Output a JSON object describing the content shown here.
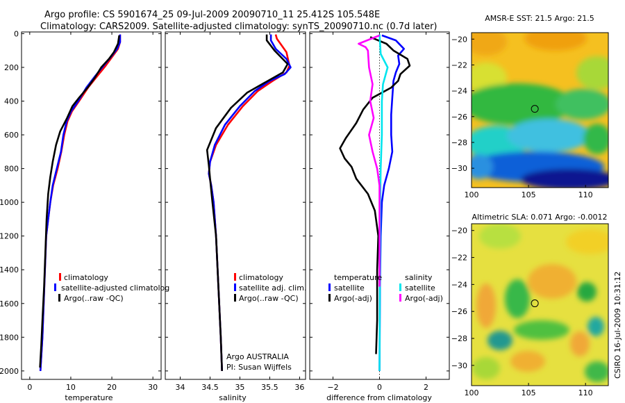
{
  "figure": {
    "title_line1": "Argo profile: CS 5901674_25 09-Jul-2009 20090710_11 25.412S 105.548E",
    "title_line2": "Climatology: CARS2009. Satellite-adjusted climatology: synTS_20090710.nc (0.7d later)",
    "side_note": "CSIRO 16-Jul-2009 10:31:12",
    "colors": {
      "red": "#ff0000",
      "blue": "#0000ff",
      "black": "#000000",
      "cyan": "#00e5ee",
      "magenta": "#ff00ff"
    }
  },
  "chart_data": [
    {
      "id": "temperature",
      "type": "line",
      "xlabel": "temperature",
      "xlim": [
        -2,
        32
      ],
      "ylim": [
        2050,
        -10
      ],
      "xticks": [
        0,
        10,
        20,
        30
      ],
      "yticks": [
        0,
        200,
        400,
        600,
        800,
        1000,
        1200,
        1400,
        1600,
        1800,
        2000
      ],
      "legend": {
        "placement": "lower-right",
        "entries": [
          "climatology",
          "satellite-adjusted climatolog",
          "Argo(..raw -QC)"
        ]
      },
      "series": [
        {
          "name": "climatology",
          "color": "red",
          "points": [
            [
              22,
              5
            ],
            [
              22,
              50
            ],
            [
              21.5,
              90
            ],
            [
              20,
              140
            ],
            [
              18.5,
              190
            ],
            [
              16.5,
              250
            ],
            [
              14.2,
              320
            ],
            [
              12,
              400
            ],
            [
              10.3,
              460
            ],
            [
              9.2,
              520
            ],
            [
              8.4,
              600
            ],
            [
              7.7,
              700
            ],
            [
              6.8,
              800
            ],
            [
              5.7,
              900
            ],
            [
              5,
              1000
            ],
            [
              4.5,
              1100
            ],
            [
              4,
              1200
            ],
            [
              3.7,
              1400
            ],
            [
              3.4,
              1600
            ],
            [
              3.1,
              1800
            ],
            [
              2.6,
              2000
            ]
          ]
        },
        {
          "name": "satellite-adjusted climatology",
          "color": "blue",
          "points": [
            [
              22,
              5
            ],
            [
              22,
              50
            ],
            [
              21.3,
              90
            ],
            [
              19.7,
              140
            ],
            [
              18,
              190
            ],
            [
              16,
              250
            ],
            [
              13.8,
              320
            ],
            [
              11.8,
              400
            ],
            [
              10.1,
              460
            ],
            [
              9,
              520
            ],
            [
              8.2,
              600
            ],
            [
              7.6,
              700
            ],
            [
              6.6,
              800
            ],
            [
              5.6,
              900
            ],
            [
              5,
              1000
            ],
            [
              4.5,
              1100
            ],
            [
              4,
              1200
            ],
            [
              3.7,
              1400
            ],
            [
              3.4,
              1600
            ],
            [
              3.1,
              1800
            ],
            [
              2.6,
              2000
            ]
          ]
        },
        {
          "name": "Argo(..raw -QC)",
          "color": "black",
          "points": [
            [
              21.8,
              10
            ],
            [
              21.5,
              60
            ],
            [
              20.5,
              110
            ],
            [
              19.3,
              150
            ],
            [
              17.4,
              200
            ],
            [
              15.9,
              260
            ],
            [
              14.1,
              320
            ],
            [
              12,
              380
            ],
            [
              10.4,
              430
            ],
            [
              9.1,
              500
            ],
            [
              7.4,
              580
            ],
            [
              6.4,
              660
            ],
            [
              5.6,
              760
            ],
            [
              5,
              850
            ],
            [
              4.5,
              950
            ],
            [
              4.1,
              1100
            ],
            [
              3.8,
              1300
            ],
            [
              3.5,
              1500
            ],
            [
              3.1,
              1700
            ],
            [
              2.8,
              1850
            ],
            [
              2.5,
              1980
            ]
          ]
        }
      ]
    },
    {
      "id": "salinity",
      "type": "line",
      "xlabel": "salinity",
      "xlim": [
        33.75,
        36.1
      ],
      "ylim": [
        2050,
        -10
      ],
      "xticks": [
        34,
        34.5,
        35,
        35.5,
        36
      ],
      "legend": {
        "placement": "lower-right",
        "entries": [
          "climatology",
          "satellite adj. clim.",
          "Argo(..raw -QC)"
        ]
      },
      "annotation": [
        "Argo AUSTRALIA",
        "PI: Susan Wijffels"
      ],
      "series": [
        {
          "name": "climatology",
          "color": "red",
          "points": [
            [
              35.6,
              5
            ],
            [
              35.62,
              30
            ],
            [
              35.68,
              60
            ],
            [
              35.78,
              110
            ],
            [
              35.83,
              190
            ],
            [
              35.78,
              230
            ],
            [
              35.55,
              280
            ],
            [
              35.3,
              340
            ],
            [
              35.05,
              430
            ],
            [
              34.8,
              540
            ],
            [
              34.6,
              660
            ],
            [
              34.5,
              760
            ],
            [
              34.48,
              830
            ],
            [
              34.52,
              900
            ],
            [
              34.56,
              1000
            ],
            [
              34.6,
              1200
            ],
            [
              34.64,
              1500
            ],
            [
              34.68,
              1800
            ],
            [
              34.7,
              2000
            ]
          ]
        },
        {
          "name": "satellite adjusted climatology",
          "color": "blue",
          "points": [
            [
              35.52,
              5
            ],
            [
              35.52,
              40
            ],
            [
              35.6,
              90
            ],
            [
              35.78,
              150
            ],
            [
              35.85,
              200
            ],
            [
              35.75,
              240
            ],
            [
              35.5,
              280
            ],
            [
              35.25,
              340
            ],
            [
              35,
              430
            ],
            [
              34.75,
              540
            ],
            [
              34.58,
              660
            ],
            [
              34.5,
              760
            ],
            [
              34.48,
              830
            ],
            [
              34.52,
              900
            ],
            [
              34.56,
              1000
            ],
            [
              34.6,
              1200
            ],
            [
              34.64,
              1500
            ],
            [
              34.68,
              1800
            ],
            [
              34.7,
              2000
            ]
          ]
        },
        {
          "name": "Argo(..raw -QC)",
          "color": "black",
          "points": [
            [
              35.45,
              5
            ],
            [
              35.45,
              40
            ],
            [
              35.58,
              100
            ],
            [
              35.8,
              180
            ],
            [
              35.72,
              230
            ],
            [
              35.42,
              290
            ],
            [
              35.12,
              350
            ],
            [
              34.85,
              440
            ],
            [
              34.6,
              560
            ],
            [
              34.45,
              690
            ],
            [
              34.48,
              780
            ],
            [
              34.5,
              860
            ],
            [
              34.54,
              1000
            ],
            [
              34.6,
              1200
            ],
            [
              34.64,
              1500
            ],
            [
              34.68,
              1800
            ],
            [
              34.7,
              2000
            ]
          ]
        }
      ]
    },
    {
      "id": "difference",
      "type": "line",
      "xlabel": "difference from climatology",
      "xlim": [
        -3,
        3
      ],
      "ylim": [
        2050,
        -10
      ],
      "xticks": [
        -2,
        0,
        2
      ],
      "legend": {
        "placement": "lower-center",
        "temperature_header": "temperature",
        "salinity_header": "salinity",
        "entries": [
          "satellite",
          "Argo(-adj)",
          "satellite",
          "Argo(-adj)"
        ]
      },
      "series": [
        {
          "name": "temperature satellite",
          "color": "blue",
          "points": [
            [
              0.1,
              10
            ],
            [
              0.7,
              40
            ],
            [
              1.05,
              90
            ],
            [
              0.8,
              130
            ],
            [
              0.85,
              180
            ],
            [
              0.7,
              230
            ],
            [
              0.6,
              280
            ],
            [
              0.55,
              380
            ],
            [
              0.5,
              480
            ],
            [
              0.5,
              600
            ],
            [
              0.55,
              700
            ],
            [
              0.4,
              800
            ],
            [
              0.2,
              900
            ],
            [
              0.1,
              1000
            ],
            [
              0.05,
              1200
            ],
            [
              0.02,
              1500
            ],
            [
              0,
              2000
            ]
          ]
        },
        {
          "name": "temperature Argo(-adj)",
          "color": "black",
          "points": [
            [
              -0.4,
              20
            ],
            [
              0.3,
              60
            ],
            [
              0.6,
              100
            ],
            [
              1.2,
              150
            ],
            [
              1.3,
              190
            ],
            [
              0.9,
              240
            ],
            [
              0.8,
              280
            ],
            [
              0.5,
              320
            ],
            [
              -0.3,
              380
            ],
            [
              -0.7,
              450
            ],
            [
              -1,
              530
            ],
            [
              -1.45,
              620
            ],
            [
              -1.7,
              680
            ],
            [
              -1.5,
              740
            ],
            [
              -1.2,
              790
            ],
            [
              -1,
              860
            ],
            [
              -0.5,
              950
            ],
            [
              -0.2,
              1050
            ],
            [
              -0.05,
              1200
            ],
            [
              -0.1,
              1400
            ],
            [
              -0.1,
              1700
            ],
            [
              -0.15,
              1900
            ]
          ]
        },
        {
          "name": "salinity satellite",
          "color": "cyan",
          "points": [
            [
              0,
              5
            ],
            [
              0.05,
              120
            ],
            [
              0.35,
              200
            ],
            [
              0.15,
              300
            ],
            [
              0.1,
              400
            ],
            [
              0.1,
              600
            ],
            [
              0.05,
              800
            ],
            [
              0.03,
              1000
            ],
            [
              0.02,
              1300
            ],
            [
              0.01,
              1700
            ],
            [
              0,
              2000
            ]
          ]
        },
        {
          "name": "salinity Argo(-adj)",
          "color": "magenta",
          "points": [
            [
              0,
              10
            ],
            [
              -0.9,
              60
            ],
            [
              -0.6,
              80
            ],
            [
              -0.5,
              100
            ],
            [
              -0.45,
              200
            ],
            [
              -0.3,
              300
            ],
            [
              -0.4,
              400
            ],
            [
              -0.25,
              500
            ],
            [
              -0.45,
              600
            ],
            [
              -0.3,
              700
            ],
            [
              -0.1,
              800
            ],
            [
              0,
              900
            ],
            [
              0,
              1500
            ]
          ]
        }
      ]
    },
    {
      "id": "sst-map",
      "type": "heatmap",
      "title": "AMSR-E SST: 21.5 Argo: 21.5",
      "xlim": [
        100,
        112
      ],
      "ylim": [
        -31.5,
        -19.5
      ],
      "xticks": [
        100,
        105,
        110
      ],
      "yticks": [
        -20,
        -22,
        -24,
        -26,
        -28,
        -30
      ],
      "marker": [
        105.55,
        -25.4
      ]
    },
    {
      "id": "sla-map",
      "type": "heatmap",
      "title": "Altimetric SLA: 0.071 Argo: -0.0012",
      "xlim": [
        100,
        112
      ],
      "ylim": [
        -31.5,
        -19.5
      ],
      "xticks": [
        100,
        105,
        110
      ],
      "yticks": [
        -20,
        -22,
        -24,
        -26,
        -28,
        -30
      ],
      "marker": [
        105.55,
        -25.4
      ]
    }
  ]
}
